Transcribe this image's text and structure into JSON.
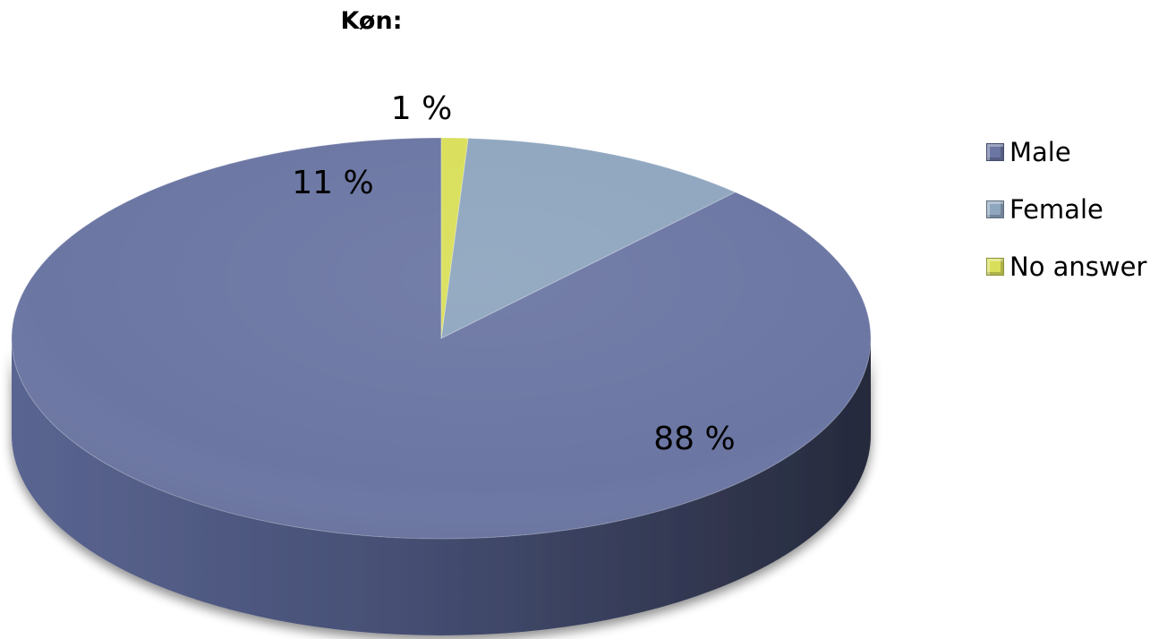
{
  "chart_data": {
    "type": "pie",
    "title": "Køn:",
    "categories": [
      "Male",
      "Female",
      "No answer"
    ],
    "values": [
      88,
      11,
      1
    ],
    "data_labels": [
      "88 %",
      "11 %",
      "1 %"
    ],
    "colors": [
      "#6b76a3",
      "#8fa6bf",
      "#d9df5a"
    ],
    "style": "3d",
    "legend_position": "right"
  }
}
